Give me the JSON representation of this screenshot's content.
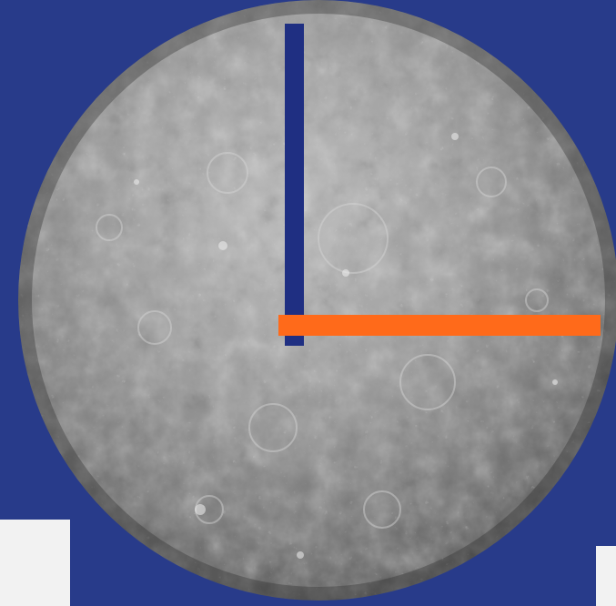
{
  "image": {
    "subject": "planet-sphere",
    "colors": {
      "background": "#283b8a",
      "planet_base": "#8e8e8e",
      "planet_light": "#bdbdbd",
      "planet_dark": "#4a4a4a",
      "vertical_bar": "#1f2f82",
      "horizontal_bar": "#ff6a1a",
      "corner_panels": "#f2f2f2"
    },
    "bars": {
      "vertical": {
        "label": "",
        "color_name": "dark-blue"
      },
      "horizontal": {
        "label": "",
        "color_name": "orange"
      }
    }
  }
}
